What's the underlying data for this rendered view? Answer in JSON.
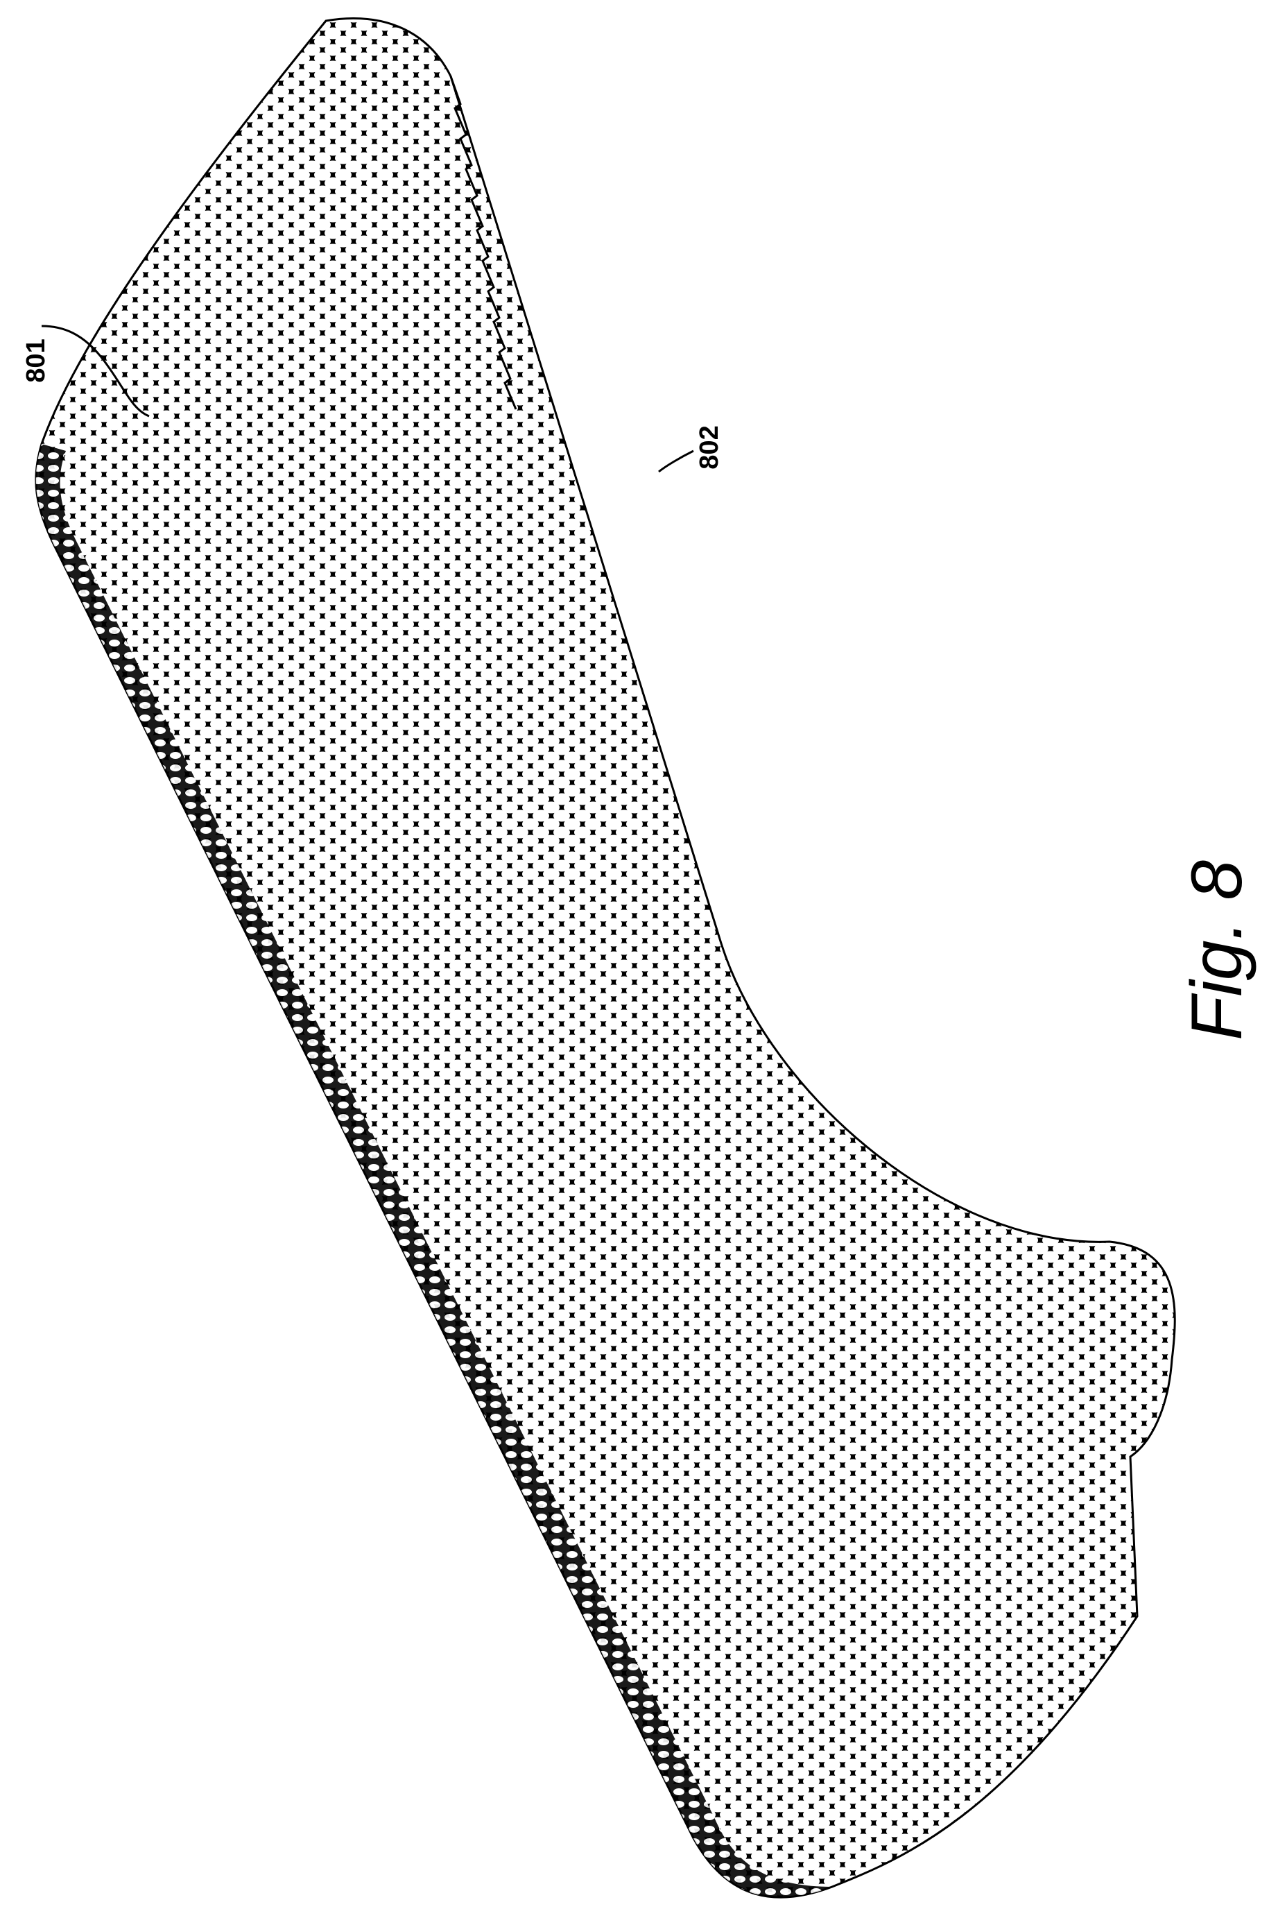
{
  "figure": {
    "caption": "Fig. 8",
    "reference_numerals": {
      "ref_801": "801",
      "ref_802": "802"
    }
  },
  "colors": {
    "ink": "#000000",
    "paper": "#ffffff"
  }
}
